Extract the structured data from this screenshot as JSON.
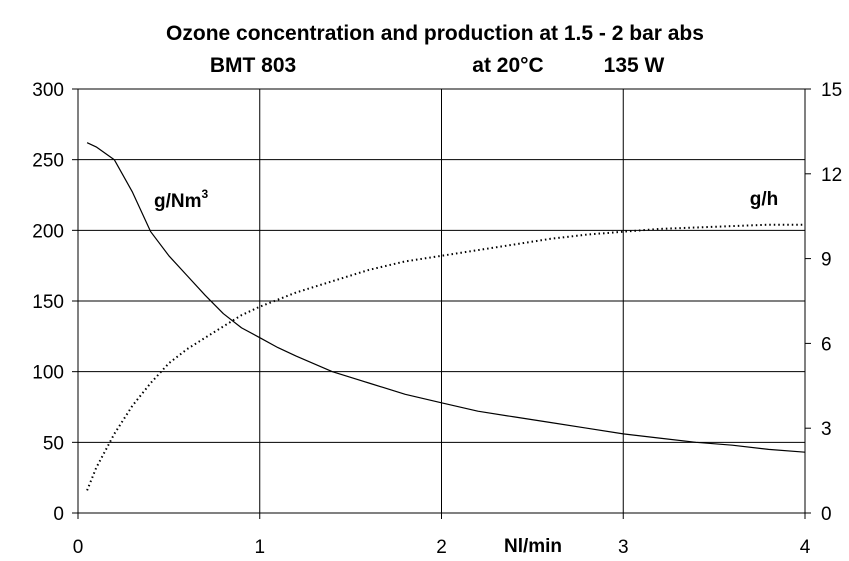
{
  "chart_data": {
    "type": "line",
    "title": "Ozone concentration and production at 1.5 - 2 bar abs",
    "subtitle_left": "BMT 803",
    "subtitle_mid": "at 20°C",
    "subtitle_right": "135 W",
    "xlabel": "Nl/min",
    "xlim": [
      0,
      4
    ],
    "ylim_left": [
      0,
      300
    ],
    "ylim_right": [
      0,
      15
    ],
    "x_ticks": [
      "0",
      "1",
      "2",
      "3",
      "4"
    ],
    "y_left_ticks": [
      "0",
      "50",
      "100",
      "150",
      "200",
      "250",
      "300"
    ],
    "y_right_ticks": [
      "0",
      "3",
      "6",
      "9",
      "12",
      "15"
    ],
    "grid": true,
    "series": [
      {
        "name": "g/Nm",
        "name_sup": "3",
        "axis": "left",
        "style": "solid",
        "x": [
          0.05,
          0.1,
          0.2,
          0.3,
          0.4,
          0.5,
          0.6,
          0.7,
          0.8,
          0.9,
          1.0,
          1.1,
          1.2,
          1.4,
          1.6,
          1.8,
          2.0,
          2.2,
          2.4,
          2.6,
          2.8,
          3.0,
          3.2,
          3.4,
          3.6,
          3.8,
          4.0
        ],
        "y": [
          262,
          259,
          250,
          227,
          199,
          182,
          168,
          154,
          141,
          131,
          124,
          117,
          111,
          100,
          92,
          84,
          78,
          72,
          68,
          64,
          60,
          56,
          53,
          50,
          48,
          45,
          43
        ]
      },
      {
        "name": "g/h",
        "axis": "right",
        "style": "dotted",
        "x": [
          0.05,
          0.1,
          0.2,
          0.3,
          0.4,
          0.5,
          0.6,
          0.7,
          0.8,
          0.9,
          1.0,
          1.2,
          1.4,
          1.6,
          1.8,
          2.0,
          2.2,
          2.4,
          2.6,
          2.8,
          3.0,
          3.2,
          3.4,
          3.6,
          3.8,
          4.0
        ],
        "y": [
          0.8,
          1.6,
          2.8,
          3.8,
          4.6,
          5.3,
          5.8,
          6.2,
          6.6,
          7.0,
          7.3,
          7.8,
          8.2,
          8.6,
          8.9,
          9.1,
          9.3,
          9.5,
          9.7,
          9.85,
          9.95,
          10.05,
          10.1,
          10.15,
          10.2,
          10.2
        ]
      }
    ]
  }
}
